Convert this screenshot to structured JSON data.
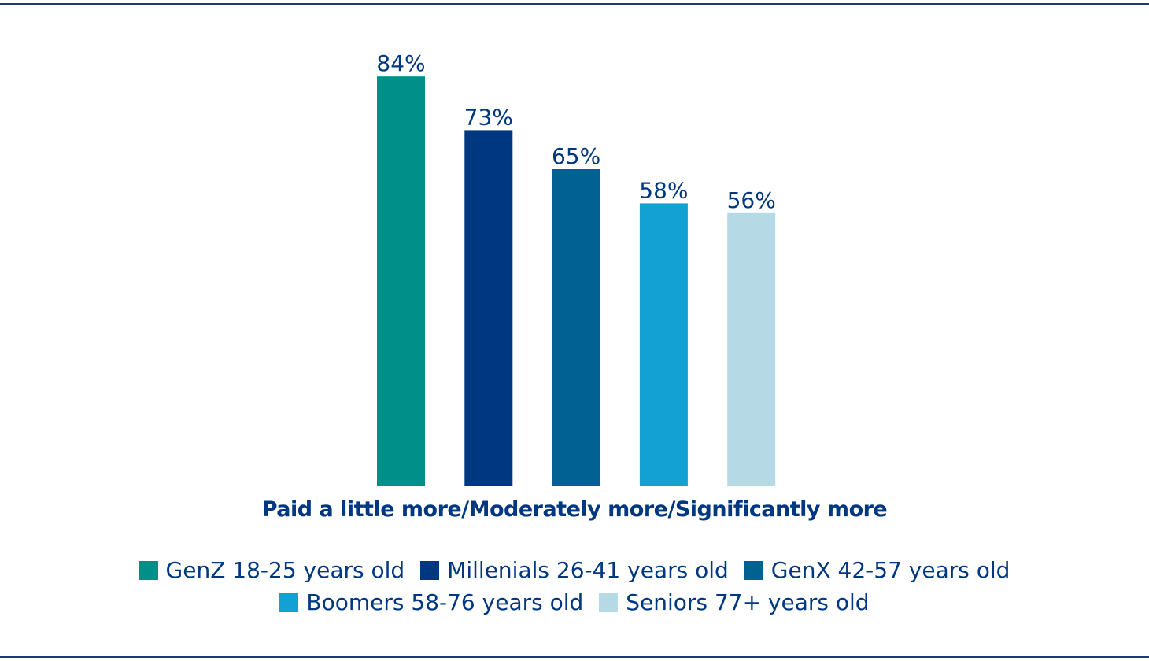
{
  "chart_data": {
    "type": "bar",
    "title": "",
    "xlabel": "Paid a little more/Moderately more/Significantly more",
    "ylabel": "",
    "ylim": [
      0,
      100
    ],
    "grid": false,
    "legend_position": "bottom",
    "categories": [
      "GenZ 18-25 years old",
      "Millenials 26-41 years old",
      "GenX 42-57 years old",
      "Boomers 58-76 years old",
      "Seniors 77+ years old"
    ],
    "values": [
      84,
      73,
      65,
      58,
      56
    ],
    "data_labels": [
      "84%",
      "73%",
      "65%",
      "58%",
      "56%"
    ],
    "colors": [
      "#00908A",
      "#003781",
      "#006192",
      "#13A0D3",
      "#B5DAE6"
    ]
  }
}
